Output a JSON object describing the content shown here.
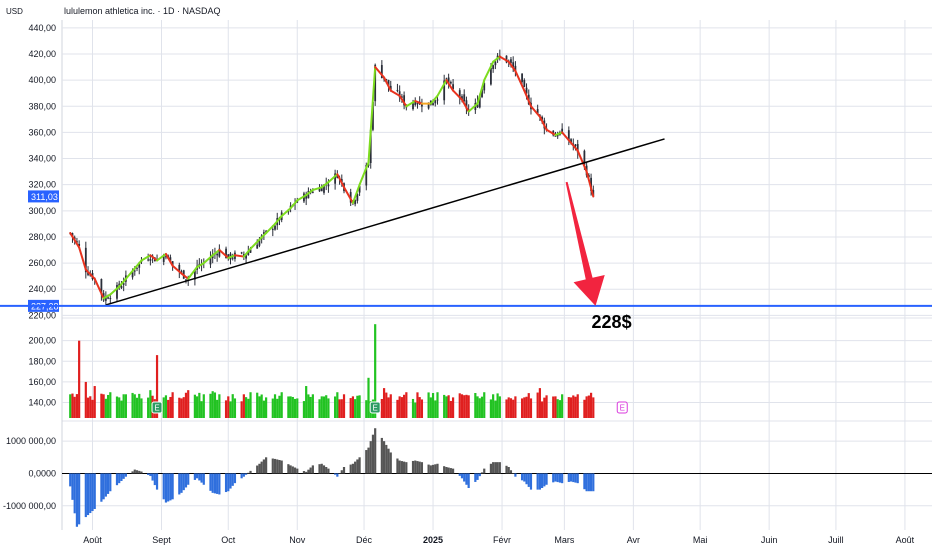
{
  "header": {
    "currency": "USD",
    "title": "lululemon athletica inc. · 1D · NASDAQ"
  },
  "chart_data": {
    "type": "candlestick",
    "price_axis": {
      "range": [
        218,
        446
      ],
      "ticks": [
        {
          "v": 440,
          "label": "440,00"
        },
        {
          "v": 420,
          "label": "420,00"
        },
        {
          "v": 400,
          "label": "400,00"
        },
        {
          "v": 380,
          "label": "380,00"
        },
        {
          "v": 360,
          "label": "360,00"
        },
        {
          "v": 340,
          "label": "340,00"
        },
        {
          "v": 320,
          "label": "320,00"
        },
        {
          "v": 300,
          "label": "300,00"
        },
        {
          "v": 280,
          "label": "280,00"
        },
        {
          "v": 260,
          "label": "260,00"
        },
        {
          "v": 240,
          "label": "240,00"
        },
        {
          "v": 220,
          "label": "220,00"
        }
      ],
      "last_price": {
        "value": 311.03,
        "label": "311,03",
        "color": "#2962ff"
      },
      "target_level": {
        "value": 227.28,
        "label": "227,28",
        "color": "#2962ff"
      }
    },
    "volume_axis": {
      "range": [
        125,
        222
      ],
      "ticks": [
        {
          "v": 200,
          "label": "200,00"
        },
        {
          "v": 180,
          "label": "180,00"
        },
        {
          "v": 160,
          "label": "160,00"
        },
        {
          "v": 140,
          "label": "140,00"
        }
      ]
    },
    "oscillator_axis": {
      "range": [
        -1750000,
        1500000
      ],
      "ticks": [
        {
          "v": 1000000,
          "label": "1000 000,00"
        },
        {
          "v": 0,
          "label": "0,0000"
        },
        {
          "v": -1000000,
          "label": "-1000 000,00"
        }
      ]
    },
    "x_axis": {
      "labels": [
        {
          "t": "2024-08-01",
          "label": "Août",
          "bold": false
        },
        {
          "t": "2024-09-01",
          "label": "Sept",
          "bold": false
        },
        {
          "t": "2024-10-01",
          "label": "Oct",
          "bold": false
        },
        {
          "t": "2024-11-01",
          "label": "Nov",
          "bold": false
        },
        {
          "t": "2024-12-01",
          "label": "Déc",
          "bold": false
        },
        {
          "t": "2025-01-01",
          "label": "2025",
          "bold": true
        },
        {
          "t": "2025-02-01",
          "label": "Févr",
          "bold": false
        },
        {
          "t": "2025-03-01",
          "label": "Mars",
          "bold": false
        },
        {
          "t": "2025-04-01",
          "label": "Avr",
          "bold": false
        },
        {
          "t": "2025-05-01",
          "label": "Mai",
          "bold": false
        },
        {
          "t": "2025-06-01",
          "label": "Juin",
          "bold": false
        },
        {
          "t": "2025-07-01",
          "label": "Juill",
          "bold": false
        },
        {
          "t": "2025-08-01",
          "label": "Août",
          "bold": false
        }
      ]
    },
    "price_path": [
      {
        "t": "2024-07-22",
        "c": 283
      },
      {
        "t": "2024-07-26",
        "c": 272
      },
      {
        "t": "2024-07-29",
        "c": 255
      },
      {
        "t": "2024-08-02",
        "c": 248
      },
      {
        "t": "2024-08-06",
        "c": 233
      },
      {
        "t": "2024-08-09",
        "c": 236
      },
      {
        "t": "2024-08-13",
        "c": 242
      },
      {
        "t": "2024-08-16",
        "c": 248
      },
      {
        "t": "2024-08-20",
        "c": 256
      },
      {
        "t": "2024-08-23",
        "c": 262
      },
      {
        "t": "2024-08-27",
        "c": 266
      },
      {
        "t": "2024-08-30",
        "c": 262
      },
      {
        "t": "2024-09-03",
        "c": 267
      },
      {
        "t": "2024-09-06",
        "c": 258
      },
      {
        "t": "2024-09-10",
        "c": 252
      },
      {
        "t": "2024-09-13",
        "c": 248
      },
      {
        "t": "2024-09-17",
        "c": 257
      },
      {
        "t": "2024-09-20",
        "c": 260
      },
      {
        "t": "2024-09-24",
        "c": 266
      },
      {
        "t": "2024-09-27",
        "c": 270
      },
      {
        "t": "2024-10-01",
        "c": 264
      },
      {
        "t": "2024-10-04",
        "c": 266
      },
      {
        "t": "2024-10-08",
        "c": 265
      },
      {
        "t": "2024-10-11",
        "c": 271
      },
      {
        "t": "2024-10-15",
        "c": 278
      },
      {
        "t": "2024-10-18",
        "c": 283
      },
      {
        "t": "2024-10-22",
        "c": 290
      },
      {
        "t": "2024-10-25",
        "c": 296
      },
      {
        "t": "2024-10-29",
        "c": 302
      },
      {
        "t": "2024-11-01",
        "c": 308
      },
      {
        "t": "2024-11-05",
        "c": 312
      },
      {
        "t": "2024-11-08",
        "c": 316
      },
      {
        "t": "2024-11-12",
        "c": 318
      },
      {
        "t": "2024-11-15",
        "c": 322
      },
      {
        "t": "2024-11-19",
        "c": 328
      },
      {
        "t": "2024-11-22",
        "c": 318
      },
      {
        "t": "2024-11-26",
        "c": 306
      },
      {
        "t": "2024-11-29",
        "c": 320
      },
      {
        "t": "2024-12-03",
        "c": 337
      },
      {
        "t": "2024-12-06",
        "c": 410
      },
      {
        "t": "2024-12-10",
        "c": 402
      },
      {
        "t": "2024-12-13",
        "c": 392
      },
      {
        "t": "2024-12-17",
        "c": 388
      },
      {
        "t": "2024-12-20",
        "c": 380
      },
      {
        "t": "2024-12-24",
        "c": 384
      },
      {
        "t": "2024-12-27",
        "c": 382
      },
      {
        "t": "2024-12-31",
        "c": 382
      },
      {
        "t": "2025-01-03",
        "c": 388
      },
      {
        "t": "2025-01-07",
        "c": 400
      },
      {
        "t": "2025-01-10",
        "c": 392
      },
      {
        "t": "2025-01-14",
        "c": 385
      },
      {
        "t": "2025-01-17",
        "c": 376
      },
      {
        "t": "2025-01-21",
        "c": 382
      },
      {
        "t": "2025-01-24",
        "c": 400
      },
      {
        "t": "2025-01-28",
        "c": 414
      },
      {
        "t": "2025-01-31",
        "c": 418
      },
      {
        "t": "2025-02-04",
        "c": 414
      },
      {
        "t": "2025-02-07",
        "c": 407
      },
      {
        "t": "2025-02-11",
        "c": 392
      },
      {
        "t": "2025-02-14",
        "c": 380
      },
      {
        "t": "2025-02-18",
        "c": 372
      },
      {
        "t": "2025-02-21",
        "c": 362
      },
      {
        "t": "2025-02-25",
        "c": 358
      },
      {
        "t": "2025-02-28",
        "c": 360
      },
      {
        "t": "2025-03-04",
        "c": 352
      },
      {
        "t": "2025-03-07",
        "c": 346
      },
      {
        "t": "2025-03-11",
        "c": 330
      },
      {
        "t": "2025-03-14",
        "c": 311
      }
    ],
    "volume": [
      {
        "t": "2024-07-22",
        "v": 148
      },
      {
        "t": "2024-07-26",
        "v": 200
      },
      {
        "t": "2024-07-29",
        "v": 160
      },
      {
        "t": "2024-08-02",
        "v": 156
      },
      {
        "t": "2024-08-06",
        "v": 148
      },
      {
        "t": "2024-08-09",
        "v": 150
      },
      {
        "t": "2024-08-13",
        "v": 145
      },
      {
        "t": "2024-08-16",
        "v": 148
      },
      {
        "t": "2024-08-20",
        "v": 148
      },
      {
        "t": "2024-08-23",
        "v": 144
      },
      {
        "t": "2024-08-27",
        "v": 152
      },
      {
        "t": "2024-08-30",
        "v": 186
      },
      {
        "t": "2024-09-03",
        "v": 147
      },
      {
        "t": "2024-09-06",
        "v": 150
      },
      {
        "t": "2024-09-10",
        "v": 144
      },
      {
        "t": "2024-09-13",
        "v": 152
      },
      {
        "t": "2024-09-17",
        "v": 146
      },
      {
        "t": "2024-09-20",
        "v": 148
      },
      {
        "t": "2024-09-24",
        "v": 151
      },
      {
        "t": "2024-09-27",
        "v": 148
      },
      {
        "t": "2024-10-01",
        "v": 146
      },
      {
        "t": "2024-10-04",
        "v": 144
      },
      {
        "t": "2024-10-08",
        "v": 148
      },
      {
        "t": "2024-10-11",
        "v": 150
      },
      {
        "t": "2024-10-15",
        "v": 146
      },
      {
        "t": "2024-10-18",
        "v": 145
      },
      {
        "t": "2024-10-22",
        "v": 148
      },
      {
        "t": "2024-10-25",
        "v": 150
      },
      {
        "t": "2024-10-29",
        "v": 146
      },
      {
        "t": "2024-11-01",
        "v": 144
      },
      {
        "t": "2024-11-05",
        "v": 156
      },
      {
        "t": "2024-11-08",
        "v": 148
      },
      {
        "t": "2024-11-12",
        "v": 146
      },
      {
        "t": "2024-11-15",
        "v": 144
      },
      {
        "t": "2024-11-19",
        "v": 150
      },
      {
        "t": "2024-11-22",
        "v": 148
      },
      {
        "t": "2024-11-26",
        "v": 146
      },
      {
        "t": "2024-11-29",
        "v": 147
      },
      {
        "t": "2024-12-03",
        "v": 164
      },
      {
        "t": "2024-12-06",
        "v": 216
      },
      {
        "t": "2024-12-10",
        "v": 154
      },
      {
        "t": "2024-12-13",
        "v": 148
      },
      {
        "t": "2024-12-17",
        "v": 146
      },
      {
        "t": "2024-12-20",
        "v": 150
      },
      {
        "t": "2024-12-24",
        "v": 140
      },
      {
        "t": "2024-12-27",
        "v": 143
      },
      {
        "t": "2024-12-31",
        "v": 145
      },
      {
        "t": "2025-01-03",
        "v": 150
      },
      {
        "t": "2025-01-07",
        "v": 146
      },
      {
        "t": "2025-01-10",
        "v": 145
      },
      {
        "t": "2025-01-14",
        "v": 148
      },
      {
        "t": "2025-01-17",
        "v": 147
      },
      {
        "t": "2025-01-21",
        "v": 146
      },
      {
        "t": "2025-01-24",
        "v": 150
      },
      {
        "t": "2025-01-28",
        "v": 148
      },
      {
        "t": "2025-01-31",
        "v": 146
      },
      {
        "t": "2025-02-04",
        "v": 145
      },
      {
        "t": "2025-02-07",
        "v": 146
      },
      {
        "t": "2025-02-11",
        "v": 145
      },
      {
        "t": "2025-02-14",
        "v": 144
      },
      {
        "t": "2025-02-18",
        "v": 154
      },
      {
        "t": "2025-02-21",
        "v": 147
      },
      {
        "t": "2025-02-25",
        "v": 146
      },
      {
        "t": "2025-02-28",
        "v": 148
      },
      {
        "t": "2025-03-04",
        "v": 145
      },
      {
        "t": "2025-03-07",
        "v": 148
      },
      {
        "t": "2025-03-11",
        "v": 146
      },
      {
        "t": "2025-03-14",
        "v": 145
      }
    ],
    "oscillator": [
      {
        "t": "2024-07-22",
        "v": -400000
      },
      {
        "t": "2024-07-25",
        "v": -1650000
      },
      {
        "t": "2024-07-29",
        "v": -1350000
      },
      {
        "t": "2024-08-02",
        "v": -1100000
      },
      {
        "t": "2024-08-06",
        "v": -800000
      },
      {
        "t": "2024-08-09",
        "v": -550000
      },
      {
        "t": "2024-08-13",
        "v": -300000
      },
      {
        "t": "2024-08-16",
        "v": -100000
      },
      {
        "t": "2024-08-20",
        "v": 120000
      },
      {
        "t": "2024-08-23",
        "v": 60000
      },
      {
        "t": "2024-08-27",
        "v": -80000
      },
      {
        "t": "2024-08-30",
        "v": -500000
      },
      {
        "t": "2024-09-03",
        "v": -900000
      },
      {
        "t": "2024-09-06",
        "v": -800000
      },
      {
        "t": "2024-09-10",
        "v": -600000
      },
      {
        "t": "2024-09-13",
        "v": -350000
      },
      {
        "t": "2024-09-17",
        "v": -150000
      },
      {
        "t": "2024-09-20",
        "v": -350000
      },
      {
        "t": "2024-09-24",
        "v": -600000
      },
      {
        "t": "2024-09-27",
        "v": -650000
      },
      {
        "t": "2024-10-01",
        "v": -550000
      },
      {
        "t": "2024-10-04",
        "v": -300000
      },
      {
        "t": "2024-10-08",
        "v": -100000
      },
      {
        "t": "2024-10-11",
        "v": 80000
      },
      {
        "t": "2024-10-15",
        "v": 300000
      },
      {
        "t": "2024-10-18",
        "v": 500000
      },
      {
        "t": "2024-10-22",
        "v": 450000
      },
      {
        "t": "2024-10-25",
        "v": 400000
      },
      {
        "t": "2024-10-29",
        "v": 250000
      },
      {
        "t": "2024-11-01",
        "v": 150000
      },
      {
        "t": "2024-11-05",
        "v": 50000
      },
      {
        "t": "2024-11-08",
        "v": 250000
      },
      {
        "t": "2024-11-12",
        "v": 300000
      },
      {
        "t": "2024-11-15",
        "v": 150000
      },
      {
        "t": "2024-11-19",
        "v": -100000
      },
      {
        "t": "2024-11-22",
        "v": 200000
      },
      {
        "t": "2024-11-26",
        "v": 300000
      },
      {
        "t": "2024-11-29",
        "v": 500000
      },
      {
        "t": "2024-12-03",
        "v": 800000
      },
      {
        "t": "2024-12-06",
        "v": 1400000
      },
      {
        "t": "2024-12-10",
        "v": 1000000
      },
      {
        "t": "2024-12-13",
        "v": 650000
      },
      {
        "t": "2024-12-17",
        "v": 400000
      },
      {
        "t": "2024-12-20",
        "v": 350000
      },
      {
        "t": "2024-12-24",
        "v": 400000
      },
      {
        "t": "2024-12-27",
        "v": 350000
      },
      {
        "t": "2024-12-31",
        "v": 250000
      },
      {
        "t": "2025-01-03",
        "v": 300000
      },
      {
        "t": "2025-01-07",
        "v": 200000
      },
      {
        "t": "2025-01-10",
        "v": 150000
      },
      {
        "t": "2025-01-14",
        "v": -150000
      },
      {
        "t": "2025-01-17",
        "v": -450000
      },
      {
        "t": "2025-01-21",
        "v": -200000
      },
      {
        "t": "2025-01-24",
        "v": 150000
      },
      {
        "t": "2025-01-28",
        "v": 350000
      },
      {
        "t": "2025-01-31",
        "v": 350000
      },
      {
        "t": "2025-02-04",
        "v": 200000
      },
      {
        "t": "2025-02-07",
        "v": -100000
      },
      {
        "t": "2025-02-11",
        "v": -250000
      },
      {
        "t": "2025-02-14",
        "v": -500000
      },
      {
        "t": "2025-02-18",
        "v": -500000
      },
      {
        "t": "2025-02-21",
        "v": -350000
      },
      {
        "t": "2025-02-25",
        "v": -250000
      },
      {
        "t": "2025-02-28",
        "v": -300000
      },
      {
        "t": "2025-03-04",
        "v": -250000
      },
      {
        "t": "2025-03-07",
        "v": -300000
      },
      {
        "t": "2025-03-11",
        "v": -550000
      },
      {
        "t": "2025-03-14",
        "v": -550000
      }
    ],
    "trendline": {
      "from": {
        "t": "2024-08-07",
        "p": 228
      },
      "to": {
        "t": "2025-04-15",
        "p": 355
      }
    },
    "target_arrow": {
      "from": {
        "t": "2025-03-02",
        "p": 322
      },
      "to": {
        "t": "2025-03-15",
        "p": 227.28
      }
    },
    "annotation": "228$",
    "earnings_markers": [
      {
        "t": "2024-08-30",
        "label": "E"
      },
      {
        "t": "2024-12-06",
        "label": "E"
      },
      {
        "t": "2025-03-27",
        "label": "E"
      }
    ],
    "colors": {
      "up": "#22c322",
      "down": "#e01f1f",
      "osc_pos": "#555555",
      "osc_neg": "#2f6fdd",
      "grid": "#e0e3eb",
      "earnings": "#d83adc"
    }
  }
}
